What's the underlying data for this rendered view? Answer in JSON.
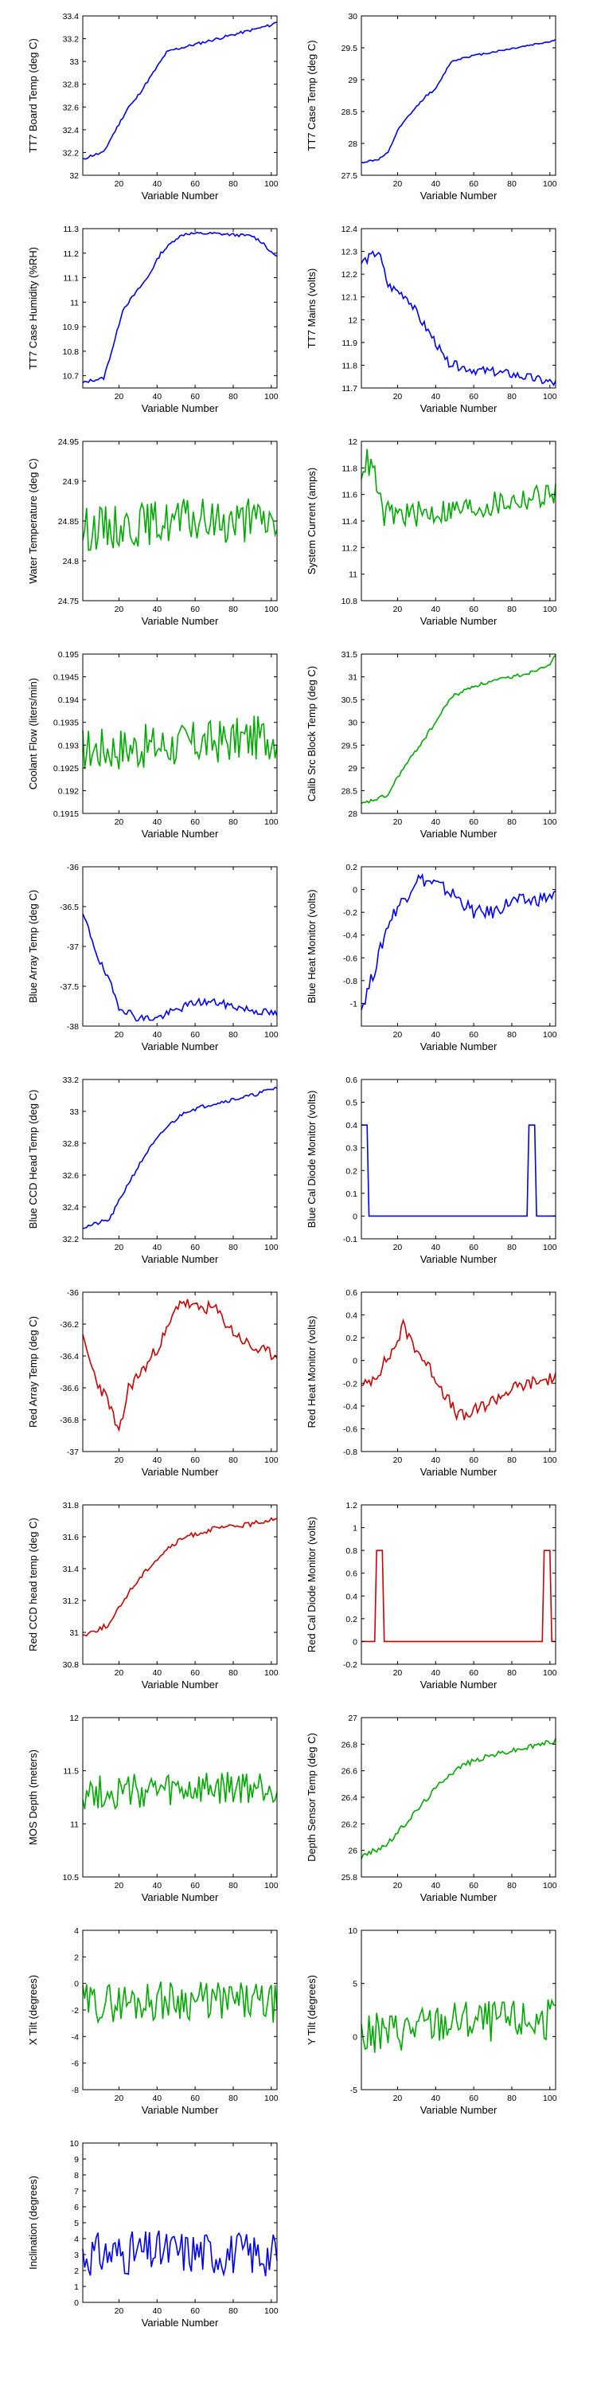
{
  "chart_data": [
    {
      "type": "line",
      "color": "#0000ff",
      "xlabel": "Variable Number",
      "ylabel": "TT7 Board Temp (deg C)",
      "ylim": [
        32,
        33.4
      ],
      "yticks": [
        32,
        32.2,
        32.4,
        32.6,
        32.8,
        33,
        33.2,
        33.4
      ],
      "xlim": [
        1,
        103
      ],
      "xticks": [
        20,
        40,
        60,
        80,
        100
      ],
      "key_x": [
        1,
        5,
        12,
        15,
        25,
        28,
        38,
        45,
        48,
        60,
        100,
        103
      ],
      "key_y": [
        32.14,
        32.17,
        32.2,
        32.3,
        32.6,
        32.65,
        32.9,
        33.08,
        33.1,
        33.15,
        33.32,
        33.35
      ],
      "noise": 0.012,
      "seed": 11
    },
    {
      "type": "line",
      "color": "#0000ff",
      "xlabel": "Variable Number",
      "ylabel": "TT7 Case Temp (deg C)",
      "ylim": [
        27.5,
        30
      ],
      "yticks": [
        27.5,
        28,
        28.5,
        29,
        29.5,
        30
      ],
      "xlim": [
        1,
        103
      ],
      "xticks": [
        20,
        40,
        60,
        80,
        100
      ],
      "key_x": [
        1,
        10,
        15,
        20,
        25,
        35,
        40,
        48,
        55,
        100,
        103
      ],
      "key_y": [
        27.7,
        27.75,
        27.85,
        28.2,
        28.4,
        28.75,
        28.85,
        29.28,
        29.35,
        29.6,
        29.62
      ],
      "noise": 0.015,
      "seed": 12
    },
    {
      "type": "line",
      "color": "#0000ff",
      "xlabel": "Variable Number",
      "ylabel": "TT7 Case Humidity (%RH)",
      "ylim": [
        10.65,
        11.3
      ],
      "yticks": [
        10.7,
        10.8,
        10.9,
        11,
        11.1,
        11.2,
        11.3
      ],
      "xlim": [
        1,
        103
      ],
      "xticks": [
        20,
        40,
        60,
        80,
        100
      ],
      "key_x": [
        1,
        5,
        12,
        18,
        22,
        35,
        42,
        50,
        55,
        70,
        90,
        96,
        100,
        103
      ],
      "key_y": [
        10.67,
        10.68,
        10.69,
        10.85,
        10.97,
        11.1,
        11.2,
        11.26,
        11.28,
        11.28,
        11.27,
        11.24,
        11.2,
        11.19
      ],
      "noise": 0.006,
      "seed": 13
    },
    {
      "type": "line",
      "color": "#0000ff",
      "xlabel": "Variable Number",
      "ylabel": "TT7 Mains  (volts)",
      "ylim": [
        11.7,
        12.4
      ],
      "yticks": [
        11.7,
        11.8,
        11.9,
        12,
        12.1,
        12.2,
        12.3,
        12.4
      ],
      "xlim": [
        1,
        103
      ],
      "xticks": [
        20,
        40,
        60,
        80,
        100
      ],
      "key_x": [
        1,
        10,
        15,
        25,
        32,
        40,
        45,
        50,
        60,
        80,
        103
      ],
      "key_y": [
        12.25,
        12.3,
        12.15,
        12.1,
        12,
        11.9,
        11.82,
        11.8,
        11.78,
        11.76,
        11.72
      ],
      "noise": 0.02,
      "seed": 14
    },
    {
      "type": "line",
      "color": "#00aa00",
      "xlabel": "Variable Number",
      "ylabel": "Water Temperature (deg C)",
      "ylim": [
        24.75,
        24.95
      ],
      "yticks": [
        24.75,
        24.8,
        24.85,
        24.9,
        24.95
      ],
      "xlim": [
        1,
        103
      ],
      "xticks": [
        20,
        40,
        60,
        80,
        100
      ],
      "key_x": [
        1,
        50,
        103
      ],
      "key_y": [
        24.84,
        24.85,
        24.85
      ],
      "noise": 0.028,
      "seed": 15
    },
    {
      "type": "line",
      "color": "#00aa00",
      "xlabel": "Variable Number",
      "ylabel": "System Current (amps)",
      "ylim": [
        10.8,
        12
      ],
      "yticks": [
        10.8,
        11,
        11.2,
        11.4,
        11.6,
        11.8,
        12
      ],
      "xlim": [
        1,
        103
      ],
      "xticks": [
        20,
        40,
        60,
        80,
        100
      ],
      "key_x": [
        1,
        4,
        8,
        12,
        30,
        60,
        100,
        103
      ],
      "key_y": [
        11.8,
        11.85,
        11.75,
        11.45,
        11.45,
        11.5,
        11.6,
        11.62
      ],
      "noise": 0.1,
      "seed": 16
    },
    {
      "type": "line",
      "color": "#00aa00",
      "xlabel": "Variable Number",
      "ylabel": "Coolant Flow (liters/min)",
      "ylim": [
        0.1915,
        0.195
      ],
      "yticks": [
        0.1915,
        0.192,
        0.1925,
        0.193,
        0.1935,
        0.194,
        0.1945,
        0.195
      ],
      "xlim": [
        1,
        103
      ],
      "xticks": [
        20,
        40,
        60,
        80,
        100
      ],
      "key_x": [
        1,
        50,
        103
      ],
      "key_y": [
        0.1929,
        0.193,
        0.1932
      ],
      "noise": 0.0005,
      "seed": 17
    },
    {
      "type": "line",
      "color": "#00aa00",
      "xlabel": "Variable Number",
      "ylabel": "Calib Src Block Temp (deg C)",
      "ylim": [
        28,
        31.5
      ],
      "yticks": [
        28,
        28.5,
        29,
        29.5,
        30,
        30.5,
        31,
        31.5
      ],
      "xlim": [
        1,
        103
      ],
      "xticks": [
        20,
        40,
        60,
        80,
        100
      ],
      "key_x": [
        1,
        15,
        20,
        30,
        40,
        48,
        60,
        90,
        100,
        103
      ],
      "key_y": [
        28.2,
        28.4,
        28.8,
        29.4,
        30,
        30.55,
        30.8,
        31.1,
        31.3,
        31.45
      ],
      "noise": 0.04,
      "seed": 18
    },
    {
      "type": "line",
      "color": "#0000ff",
      "xlabel": "Variable Number",
      "ylabel": "Blue Array Temp (deg C)",
      "ylim": [
        -38,
        -36
      ],
      "yticks": [
        -38,
        -37.5,
        -37,
        -36.5,
        -36
      ],
      "xlim": [
        1,
        103
      ],
      "xticks": [
        20,
        40,
        60,
        80,
        100
      ],
      "key_x": [
        1,
        5,
        10,
        15,
        20,
        30,
        40,
        50,
        60,
        70,
        80,
        90,
        103
      ],
      "key_y": [
        -36.6,
        -36.85,
        -37.2,
        -37.45,
        -37.75,
        -37.9,
        -37.9,
        -37.8,
        -37.7,
        -37.7,
        -37.75,
        -37.8,
        -37.85
      ],
      "noise": 0.05,
      "seed": 19
    },
    {
      "type": "line",
      "color": "#0000ff",
      "xlabel": "Variable Number",
      "ylabel": "Blue Heat Monitor (volts)",
      "ylim": [
        -1.2,
        0.2
      ],
      "yticks": [
        -1,
        -0.8,
        -0.6,
        -0.4,
        -0.2,
        0,
        0.2
      ],
      "xlim": [
        1,
        103
      ],
      "xticks": [
        20,
        40,
        60,
        80,
        100
      ],
      "key_x": [
        1,
        8,
        15,
        20,
        25,
        30,
        40,
        50,
        60,
        70,
        80,
        90,
        103
      ],
      "key_y": [
        -1.05,
        -0.7,
        -0.3,
        -0.15,
        -0.05,
        0.1,
        0.05,
        -0.05,
        -0.2,
        -0.2,
        -0.1,
        -0.1,
        -0.05
      ],
      "noise": 0.06,
      "seed": 20
    },
    {
      "type": "line",
      "color": "#0000ff",
      "xlabel": "Variable Number",
      "ylabel": "Blue CCD Head Temp (deg C)",
      "ylim": [
        32.2,
        33.2
      ],
      "yticks": [
        32.2,
        32.4,
        32.6,
        32.8,
        33,
        33.2
      ],
      "xlim": [
        1,
        103
      ],
      "xticks": [
        20,
        40,
        60,
        80,
        100
      ],
      "key_x": [
        1,
        15,
        25,
        35,
        45,
        55,
        70,
        90,
        103
      ],
      "key_y": [
        32.27,
        32.32,
        32.55,
        32.75,
        32.9,
        33,
        33.05,
        33.1,
        33.15
      ],
      "noise": 0.012,
      "seed": 21
    },
    {
      "type": "line",
      "color": "#0000ff",
      "xlabel": "Variable Number",
      "ylabel": "Blue Cal Diode Monitor (volts)",
      "ylim": [
        -0.1,
        0.6
      ],
      "yticks": [
        -0.1,
        0,
        0.1,
        0.2,
        0.3,
        0.4,
        0.5,
        0.6
      ],
      "xlim": [
        1,
        103
      ],
      "xticks": [
        20,
        40,
        60,
        80,
        100
      ],
      "key_x": [
        1,
        2,
        4,
        5,
        88,
        89,
        92,
        93,
        103
      ],
      "key_y": [
        0.4,
        0.4,
        0.4,
        0,
        0,
        0.4,
        0.4,
        0,
        0
      ],
      "noise": 0,
      "seed": 22
    },
    {
      "type": "line",
      "color": "#cc0000",
      "xlabel": "Variable Number",
      "ylabel": "Red Array Temp (deg C)",
      "ylim": [
        -37,
        -36
      ],
      "yticks": [
        -37,
        -36.8,
        -36.6,
        -36.4,
        -36.2,
        -36
      ],
      "xlim": [
        1,
        103
      ],
      "xticks": [
        20,
        40,
        60,
        80,
        100
      ],
      "key_x": [
        1,
        8,
        15,
        20,
        25,
        35,
        45,
        52,
        60,
        70,
        80,
        90,
        103
      ],
      "key_y": [
        -36.3,
        -36.55,
        -36.7,
        -36.9,
        -36.6,
        -36.45,
        -36.25,
        -36.05,
        -36.1,
        -36.1,
        -36.25,
        -36.35,
        -36.4
      ],
      "noise": 0.04,
      "seed": 23
    },
    {
      "type": "line",
      "color": "#cc0000",
      "xlabel": "Variable Number",
      "ylabel": "Red Heat Monitor (volts)",
      "ylim": [
        -0.8,
        0.6
      ],
      "yticks": [
        -0.8,
        -0.6,
        -0.4,
        -0.2,
        0,
        0.2,
        0.4,
        0.6
      ],
      "xlim": [
        1,
        103
      ],
      "xticks": [
        20,
        40,
        60,
        80,
        100
      ],
      "key_x": [
        1,
        10,
        18,
        23,
        30,
        40,
        50,
        55,
        65,
        80,
        90,
        103
      ],
      "key_y": [
        -0.25,
        -0.1,
        0.1,
        0.3,
        0.1,
        -0.15,
        -0.45,
        -0.5,
        -0.4,
        -0.25,
        -0.2,
        -0.15
      ],
      "noise": 0.06,
      "seed": 24
    },
    {
      "type": "line",
      "color": "#cc0000",
      "xlabel": "Variable Number",
      "ylabel": "Red CCD head temp (deg C)",
      "ylim": [
        30.8,
        31.8
      ],
      "yticks": [
        30.8,
        31,
        31.2,
        31.4,
        31.6,
        31.8
      ],
      "xlim": [
        1,
        103
      ],
      "xticks": [
        20,
        40,
        60,
        80,
        100
      ],
      "key_x": [
        1,
        15,
        25,
        35,
        45,
        55,
        70,
        90,
        103
      ],
      "key_y": [
        30.98,
        31.05,
        31.25,
        31.4,
        31.52,
        31.6,
        31.65,
        31.68,
        31.72
      ],
      "noise": 0.015,
      "seed": 25
    },
    {
      "type": "line",
      "color": "#cc0000",
      "xlabel": "Variable Number",
      "ylabel": "Red Cal Diode Monitor (volts)",
      "ylim": [
        -0.2,
        1.2
      ],
      "yticks": [
        -0.2,
        0,
        0.2,
        0.4,
        0.6,
        0.8,
        1,
        1.2
      ],
      "xlim": [
        1,
        103
      ],
      "xticks": [
        20,
        40,
        60,
        80,
        100
      ],
      "key_x": [
        1,
        8,
        9,
        12,
        13,
        96,
        97,
        100,
        101,
        103
      ],
      "key_y": [
        0,
        0,
        0.8,
        0.8,
        0,
        0,
        0.8,
        0.8,
        0,
        0
      ],
      "noise": 0,
      "seed": 26
    },
    {
      "type": "line",
      "color": "#00aa00",
      "xlabel": "Variable Number",
      "ylabel": "MOS Depth  (meters)",
      "ylim": [
        10.5,
        12
      ],
      "yticks": [
        10.5,
        11,
        11.5,
        12
      ],
      "xlim": [
        1,
        103
      ],
      "xticks": [
        20,
        40,
        60,
        80,
        100
      ],
      "key_x": [
        1,
        50,
        103
      ],
      "key_y": [
        11.3,
        11.3,
        11.35
      ],
      "noise": 0.17,
      "seed": 27
    },
    {
      "type": "line",
      "color": "#00aa00",
      "xlabel": "Variable Number",
      "ylabel": "Depth Sensor Temp (deg C)",
      "ylim": [
        25.8,
        27
      ],
      "yticks": [
        25.8,
        26,
        26.2,
        26.4,
        26.6,
        26.8,
        27
      ],
      "xlim": [
        1,
        103
      ],
      "xticks": [
        20,
        40,
        60,
        80,
        100
      ],
      "key_x": [
        1,
        15,
        30,
        45,
        55,
        70,
        90,
        103
      ],
      "key_y": [
        25.95,
        26.05,
        26.3,
        26.55,
        26.65,
        26.72,
        26.78,
        26.83
      ],
      "noise": 0.02,
      "seed": 28
    },
    {
      "type": "line",
      "color": "#00aa00",
      "xlabel": "Variable Number",
      "ylabel": "X Tilt  (degrees)",
      "ylim": [
        -8,
        4
      ],
      "yticks": [
        -8,
        -6,
        -4,
        -2,
        0,
        2,
        4
      ],
      "xlim": [
        1,
        103
      ],
      "xticks": [
        20,
        40,
        60,
        80,
        100
      ],
      "key_x": [
        1,
        50,
        103
      ],
      "key_y": [
        -1.5,
        -1.2,
        -1.5
      ],
      "noise": 1.5,
      "seed": 29
    },
    {
      "type": "line",
      "color": "#00aa00",
      "xlabel": "Variable Number",
      "ylabel": "Y Tilt  (degrees)",
      "ylim": [
        -5,
        10
      ],
      "yticks": [
        -5,
        0,
        5,
        10
      ],
      "xlim": [
        1,
        103
      ],
      "xticks": [
        20,
        40,
        60,
        80,
        100
      ],
      "key_x": [
        1,
        50,
        103
      ],
      "key_y": [
        0,
        1.5,
        1.5
      ],
      "noise": 2,
      "seed": 30
    },
    {
      "type": "line",
      "color": "#0000ff",
      "xlabel": "Variable Number",
      "ylabel": "Inclination  (degrees)",
      "ylim": [
        0,
        10
      ],
      "yticks": [
        0,
        1,
        2,
        3,
        4,
        5,
        6,
        7,
        8,
        9,
        10
      ],
      "xlim": [
        1,
        103
      ],
      "xticks": [
        20,
        40,
        60,
        80,
        100
      ],
      "key_x": [
        1,
        50,
        103
      ],
      "key_y": [
        3,
        3.2,
        3
      ],
      "noise": 1.4,
      "seed": 31
    }
  ]
}
